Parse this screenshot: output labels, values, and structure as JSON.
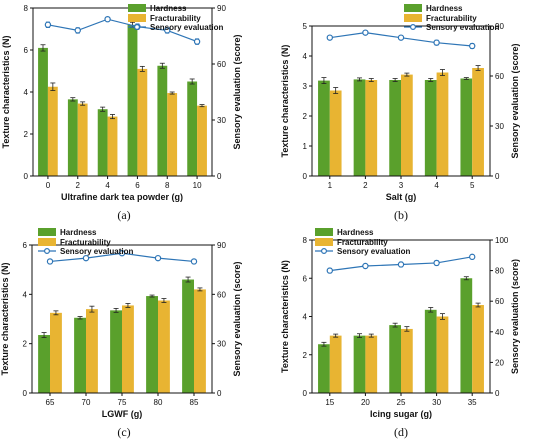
{
  "colors": {
    "hardness": "#5aa02c",
    "fracturability": "#e8b432",
    "sensory": "#2e75b6",
    "error": "#222222"
  },
  "chart_data": [
    {
      "type": "bar",
      "panel_label": "(a)",
      "xlabel": "Ultrafine dark tea powder (g)",
      "ylabel": "Texture characteristics (N)",
      "y2label": "Sensory evaluation (score)",
      "categories": [
        "0",
        "2",
        "4",
        "6",
        "8",
        "10"
      ],
      "ylim": [
        0,
        8
      ],
      "yticks": [
        "0",
        "2",
        "4",
        "6",
        "8"
      ],
      "y2lim": [
        0,
        90
      ],
      "y2ticks": [
        "0",
        "30",
        "60",
        "90"
      ],
      "series": [
        {
          "name": "Hardness",
          "kind": "bar",
          "axis": "left",
          "values": [
            6.1,
            3.65,
            3.18,
            7.2,
            5.25,
            4.5
          ],
          "errors": [
            0.15,
            0.08,
            0.1,
            0.12,
            0.12,
            0.12
          ]
        },
        {
          "name": "Fracturability",
          "kind": "bar",
          "axis": "left",
          "values": [
            4.25,
            3.45,
            2.83,
            5.1,
            3.95,
            3.35
          ],
          "errors": [
            0.18,
            0.08,
            0.1,
            0.12,
            0.05,
            0.05
          ]
        },
        {
          "name": "Sensory evaluation",
          "kind": "line",
          "axis": "right",
          "values": [
            81,
            78,
            84,
            80,
            78,
            72
          ],
          "errors": [
            1.5,
            1.5,
            1.0,
            1.5,
            1.5,
            1.5
          ]
        }
      ],
      "legend": "top-right"
    },
    {
      "type": "bar",
      "panel_label": "(b)",
      "xlabel": "Salt (g)",
      "ylabel": "Texture characteristics (N)",
      "y2label": "Sensory evaluation (score)",
      "categories": [
        "1",
        "2",
        "3",
        "4",
        "5"
      ],
      "ylim": [
        0,
        5
      ],
      "yticks": [
        "0",
        "1",
        "2",
        "3",
        "4",
        "5"
      ],
      "y2lim": [
        0,
        90
      ],
      "y2ticks": [
        "0",
        "30",
        "60",
        "90"
      ],
      "series": [
        {
          "name": "Hardness",
          "kind": "bar",
          "axis": "left",
          "values": [
            3.18,
            3.22,
            3.2,
            3.2,
            3.25
          ],
          "errors": [
            0.1,
            0.05,
            0.05,
            0.05,
            0.03
          ]
        },
        {
          "name": "Fracturability",
          "kind": "bar",
          "axis": "left",
          "values": [
            2.85,
            3.2,
            3.38,
            3.45,
            3.6
          ],
          "errors": [
            0.1,
            0.05,
            0.05,
            0.1,
            0.08
          ]
        },
        {
          "name": "Sensory evaluation",
          "kind": "line",
          "axis": "right",
          "values": [
            83,
            86,
            83,
            80,
            78
          ],
          "errors": [
            1.0,
            1.0,
            1.2,
            1.5,
            1.5
          ]
        }
      ],
      "legend": "top-right"
    },
    {
      "type": "bar",
      "panel_label": "(c)",
      "xlabel": "LGWF (g)",
      "ylabel": "Texture characteristics (N)",
      "y2label": "Sensory evaluation (score)",
      "categories": [
        "65",
        "70",
        "75",
        "80",
        "85"
      ],
      "ylim": [
        0,
        6
      ],
      "yticks": [
        "0",
        "2",
        "4",
        "6"
      ],
      "y2lim": [
        0,
        90
      ],
      "y2ticks": [
        "0",
        "30",
        "60",
        "90"
      ],
      "series": [
        {
          "name": "Hardness",
          "kind": "bar",
          "axis": "left",
          "values": [
            2.35,
            3.05,
            3.35,
            3.93,
            4.6
          ],
          "errors": [
            0.1,
            0.05,
            0.08,
            0.04,
            0.1
          ]
        },
        {
          "name": "Fracturability",
          "kind": "bar",
          "axis": "left",
          "values": [
            3.25,
            3.4,
            3.55,
            3.75,
            4.2
          ],
          "errors": [
            0.08,
            0.12,
            0.08,
            0.08,
            0.06
          ]
        },
        {
          "name": "Sensory evaluation",
          "kind": "line",
          "axis": "right",
          "values": [
            80,
            82,
            85,
            82,
            80
          ],
          "errors": [
            1.2,
            1.0,
            1.0,
            1.0,
            1.0
          ]
        }
      ],
      "legend": "top-left"
    },
    {
      "type": "bar",
      "panel_label": "(d)",
      "xlabel": "Icing sugar (g)",
      "ylabel": "Texture characteristics (N)",
      "y2label": "Sensory evaluation (score)",
      "categories": [
        "15",
        "20",
        "25",
        "30",
        "35"
      ],
      "ylim": [
        0,
        8
      ],
      "yticks": [
        "0",
        "2",
        "4",
        "6",
        "8"
      ],
      "y2lim": [
        0,
        100
      ],
      "y2ticks": [
        "0",
        "20",
        "40",
        "60",
        "80",
        "100"
      ],
      "series": [
        {
          "name": "Hardness",
          "kind": "bar",
          "axis": "left",
          "values": [
            2.55,
            3.0,
            3.55,
            4.35,
            6.0
          ],
          "errors": [
            0.1,
            0.1,
            0.1,
            0.12,
            0.08
          ]
        },
        {
          "name": "Fracturability",
          "kind": "bar",
          "axis": "left",
          "values": [
            3.0,
            3.0,
            3.35,
            4.0,
            4.6
          ],
          "errors": [
            0.08,
            0.08,
            0.12,
            0.15,
            0.1
          ]
        },
        {
          "name": "Sensory evaluation",
          "kind": "line",
          "axis": "right",
          "values": [
            80,
            83,
            84,
            85,
            89
          ],
          "errors": [
            1.5,
            1.2,
            1.5,
            1.5,
            1.0
          ]
        }
      ],
      "legend": "top-left"
    }
  ]
}
